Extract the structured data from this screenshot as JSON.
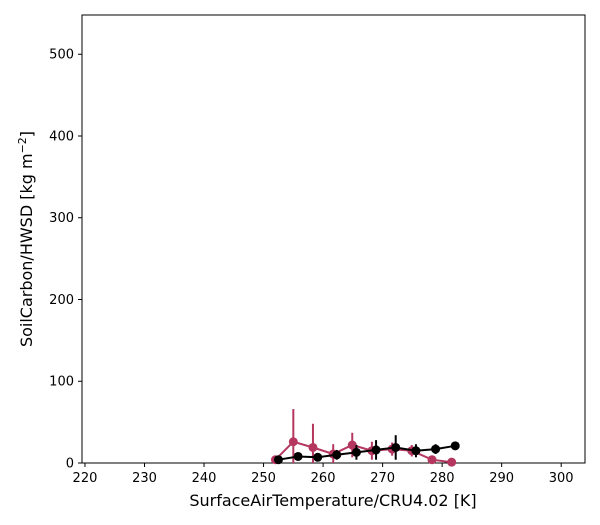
{
  "chart_data": {
    "type": "scatter",
    "title": "",
    "xlabel": "SurfaceAirTemperature/CRU4.02 [K]",
    "ylabel_main": "SoilCarbon/HWSD [kg m",
    "ylabel_sup": "−2",
    "ylabel_end": "]",
    "xlim": [
      219.5,
      304
    ],
    "ylim": [
      0,
      548
    ],
    "xticks": [
      "220",
      "230",
      "240",
      "250",
      "260",
      "270",
      "280",
      "290",
      "300"
    ],
    "yticks": [
      "0",
      "100",
      "200",
      "300",
      "400",
      "500"
    ],
    "grid": false,
    "legend": "none",
    "series": [
      {
        "color": "#b5375f",
        "points": [
          {
            "x": 252.0,
            "y": 4,
            "err": 2
          },
          {
            "x": 255.0,
            "y": 26,
            "err": 40
          },
          {
            "x": 258.3,
            "y": 19,
            "err": 29
          },
          {
            "x": 261.7,
            "y": 11,
            "err": 12
          },
          {
            "x": 264.9,
            "y": 22,
            "err": 15
          },
          {
            "x": 268.2,
            "y": 15,
            "err": 11
          },
          {
            "x": 271.6,
            "y": 17,
            "err": 8
          },
          {
            "x": 274.9,
            "y": 15,
            "err": 7
          },
          {
            "x": 278.3,
            "y": 4,
            "err": 4
          },
          {
            "x": 281.6,
            "y": 1,
            "err": 1
          }
        ]
      },
      {
        "color": "#000000",
        "points": [
          {
            "x": 252.5,
            "y": 4,
            "err": 3
          },
          {
            "x": 255.8,
            "y": 8,
            "err": 4
          },
          {
            "x": 259.1,
            "y": 7,
            "err": 4
          },
          {
            "x": 262.3,
            "y": 10,
            "err": 6
          },
          {
            "x": 265.6,
            "y": 13,
            "err": 9
          },
          {
            "x": 268.9,
            "y": 16,
            "err": 12
          },
          {
            "x": 272.2,
            "y": 19,
            "err": 15
          },
          {
            "x": 275.6,
            "y": 15,
            "err": 8
          },
          {
            "x": 278.9,
            "y": 17,
            "err": 6
          },
          {
            "x": 282.2,
            "y": 21,
            "err": 5
          }
        ]
      }
    ]
  }
}
